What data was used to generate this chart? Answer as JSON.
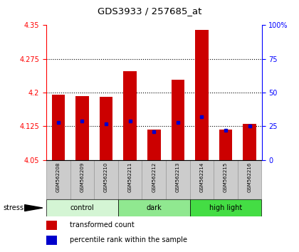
{
  "title": "GDS3933 / 257685_at",
  "samples": [
    "GSM562208",
    "GSM562209",
    "GSM562210",
    "GSM562211",
    "GSM562212",
    "GSM562213",
    "GSM562214",
    "GSM562215",
    "GSM562216"
  ],
  "transformed_counts": [
    4.195,
    4.193,
    4.19,
    4.248,
    4.118,
    4.228,
    4.34,
    4.118,
    4.13
  ],
  "percentile_ranks": [
    28,
    29,
    27,
    29,
    21,
    28,
    32,
    22,
    25
  ],
  "groups": [
    {
      "label": "control",
      "indices": [
        0,
        1,
        2
      ],
      "color": "#d4f5d4"
    },
    {
      "label": "dark",
      "indices": [
        3,
        4,
        5
      ],
      "color": "#90e890"
    },
    {
      "label": "high light",
      "indices": [
        6,
        7,
        8
      ],
      "color": "#44dd44"
    }
  ],
  "bar_color": "#cc0000",
  "dot_color": "#0000cc",
  "ylim_left": [
    4.05,
    4.35
  ],
  "ylim_right": [
    0,
    100
  ],
  "yticks_left": [
    4.05,
    4.125,
    4.2,
    4.275,
    4.35
  ],
  "yticks_right": [
    0,
    25,
    50,
    75,
    100
  ],
  "hlines": [
    4.125,
    4.2,
    4.275
  ],
  "bar_bottom": 4.05,
  "background_color": "#ffffff",
  "plot_bg_color": "#ffffff",
  "stress_label": "stress",
  "legend_bar_label": "transformed count",
  "legend_dot_label": "percentile rank within the sample",
  "sample_bg_color": "#cccccc",
  "sample_border_color": "#999999"
}
